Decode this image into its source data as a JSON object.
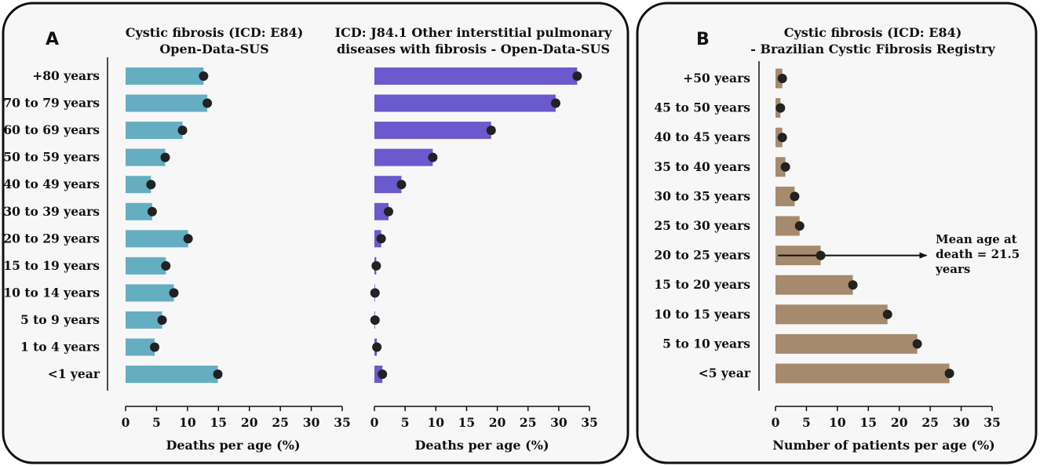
{
  "chart_data": [
    {
      "panel": "A",
      "type": "bar",
      "orientation": "horizontal",
      "title": [
        "Cystic fibrosis (ICD: E84)",
        "Open-Data-SUS"
      ],
      "xlabel": "Deaths per age (%)",
      "xlim": [
        0,
        35
      ],
      "xticks": [
        0,
        5,
        10,
        15,
        20,
        25,
        30,
        35
      ],
      "categories": [
        "+80 years",
        "70 to 79 years",
        "60 to 69 years",
        "50 to 59 years",
        "40 to 49 years",
        "30 to 39 years",
        "20 to 29 years",
        "15 to 19 years",
        "10 to 14 years",
        "5 to 9 years",
        "1 to 4 years",
        "<1 year"
      ],
      "values": [
        12.6,
        13.2,
        9.2,
        6.4,
        4.1,
        4.3,
        10.1,
        6.5,
        7.8,
        5.9,
        4.7,
        14.9
      ],
      "bar_color": "#65aec1"
    },
    {
      "panel": "A",
      "type": "bar",
      "orientation": "horizontal",
      "title": [
        "ICD: J84.1 Other interstitial pulmonary",
        "diseases with fibrosis - Open-Data-SUS"
      ],
      "xlabel": "Deaths per age (%)",
      "xlim": [
        0,
        35
      ],
      "xticks": [
        0,
        5,
        10,
        15,
        20,
        25,
        30,
        35
      ],
      "categories": [
        "+80 years",
        "70 to 79 years",
        "60 to 69 years",
        "50 to 59 years",
        "40 to 49 years",
        "30 to 39 years",
        "20 to 29 years",
        "15 to 19 years",
        "10 to 14 years",
        "5 to 9 years",
        "1 to 4 years",
        "<1 year"
      ],
      "values": [
        33.0,
        29.5,
        19.0,
        9.5,
        4.4,
        2.3,
        1.1,
        0.3,
        0.1,
        0.1,
        0.4,
        1.3
      ],
      "bar_color": "#6a5acd"
    },
    {
      "panel": "B",
      "type": "bar",
      "orientation": "horizontal",
      "title": [
        "Cystic fibrosis (ICD: E84)",
        "- Brazilian Cystic Fibrosis Registry"
      ],
      "xlabel": "Number of patients per age (%)",
      "xlim": [
        0,
        35
      ],
      "xticks": [
        0,
        5,
        10,
        15,
        20,
        25,
        30,
        35
      ],
      "categories": [
        "+50 years",
        "45 to 50 years",
        "40 to 45 years",
        "35 to 40 years",
        "30 to 35 years",
        "25 to 30 years",
        "20 to 25 years",
        "15 to 20 years",
        "10 to 15 years",
        "5 to 10 years",
        "<5 year"
      ],
      "values": [
        1.1,
        0.8,
        1.1,
        1.6,
        3.1,
        3.9,
        7.3,
        12.5,
        18.1,
        22.9,
        28.1
      ],
      "bar_color": "#a68a6d",
      "annotation": {
        "lines": [
          "Mean age at",
          "death = 21.5",
          "years"
        ],
        "arrow_row": "20 to 25 years",
        "arrow_from": 0.4,
        "arrow_to": 24.4
      }
    }
  ],
  "panel_letters": [
    "A",
    "B"
  ],
  "colors": {
    "point": "#222222",
    "frame": "#111111",
    "background": "#f7f7f7"
  }
}
